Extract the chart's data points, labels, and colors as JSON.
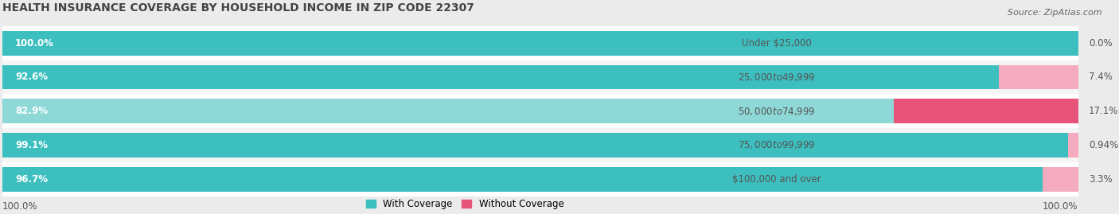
{
  "title": "HEALTH INSURANCE COVERAGE BY HOUSEHOLD INCOME IN ZIP CODE 22307",
  "source": "Source: ZipAtlas.com",
  "categories": [
    "Under $25,000",
    "$25,000 to $49,999",
    "$50,000 to $74,999",
    "$75,000 to $99,999",
    "$100,000 and over"
  ],
  "with_coverage": [
    100.0,
    92.6,
    82.9,
    99.1,
    96.7
  ],
  "without_coverage": [
    0.0,
    7.4,
    17.1,
    0.94,
    3.3
  ],
  "color_with": [
    "#3DBFBF",
    "#3DBFBF",
    "#8ED8D8",
    "#3DBFBF",
    "#3DBFBF"
  ],
  "color_without": [
    "#F4AABF",
    "#F4AABF",
    "#E8537A",
    "#F4AABF",
    "#F4AABF"
  ],
  "bg_color": "#ebebeb",
  "bar_bg": "#ffffff",
  "row_bg_alt": "#f5f5f5",
  "legend_with": "With Coverage",
  "legend_without": "Without Coverage",
  "total_label": "100.0%",
  "bar_height": 0.72,
  "figsize": [
    14.06,
    2.69
  ],
  "wc_label_color": "white",
  "cat_label_color": "#555555",
  "woc_label_color": "#555555",
  "title_color": "#444444",
  "source_color": "#666666"
}
